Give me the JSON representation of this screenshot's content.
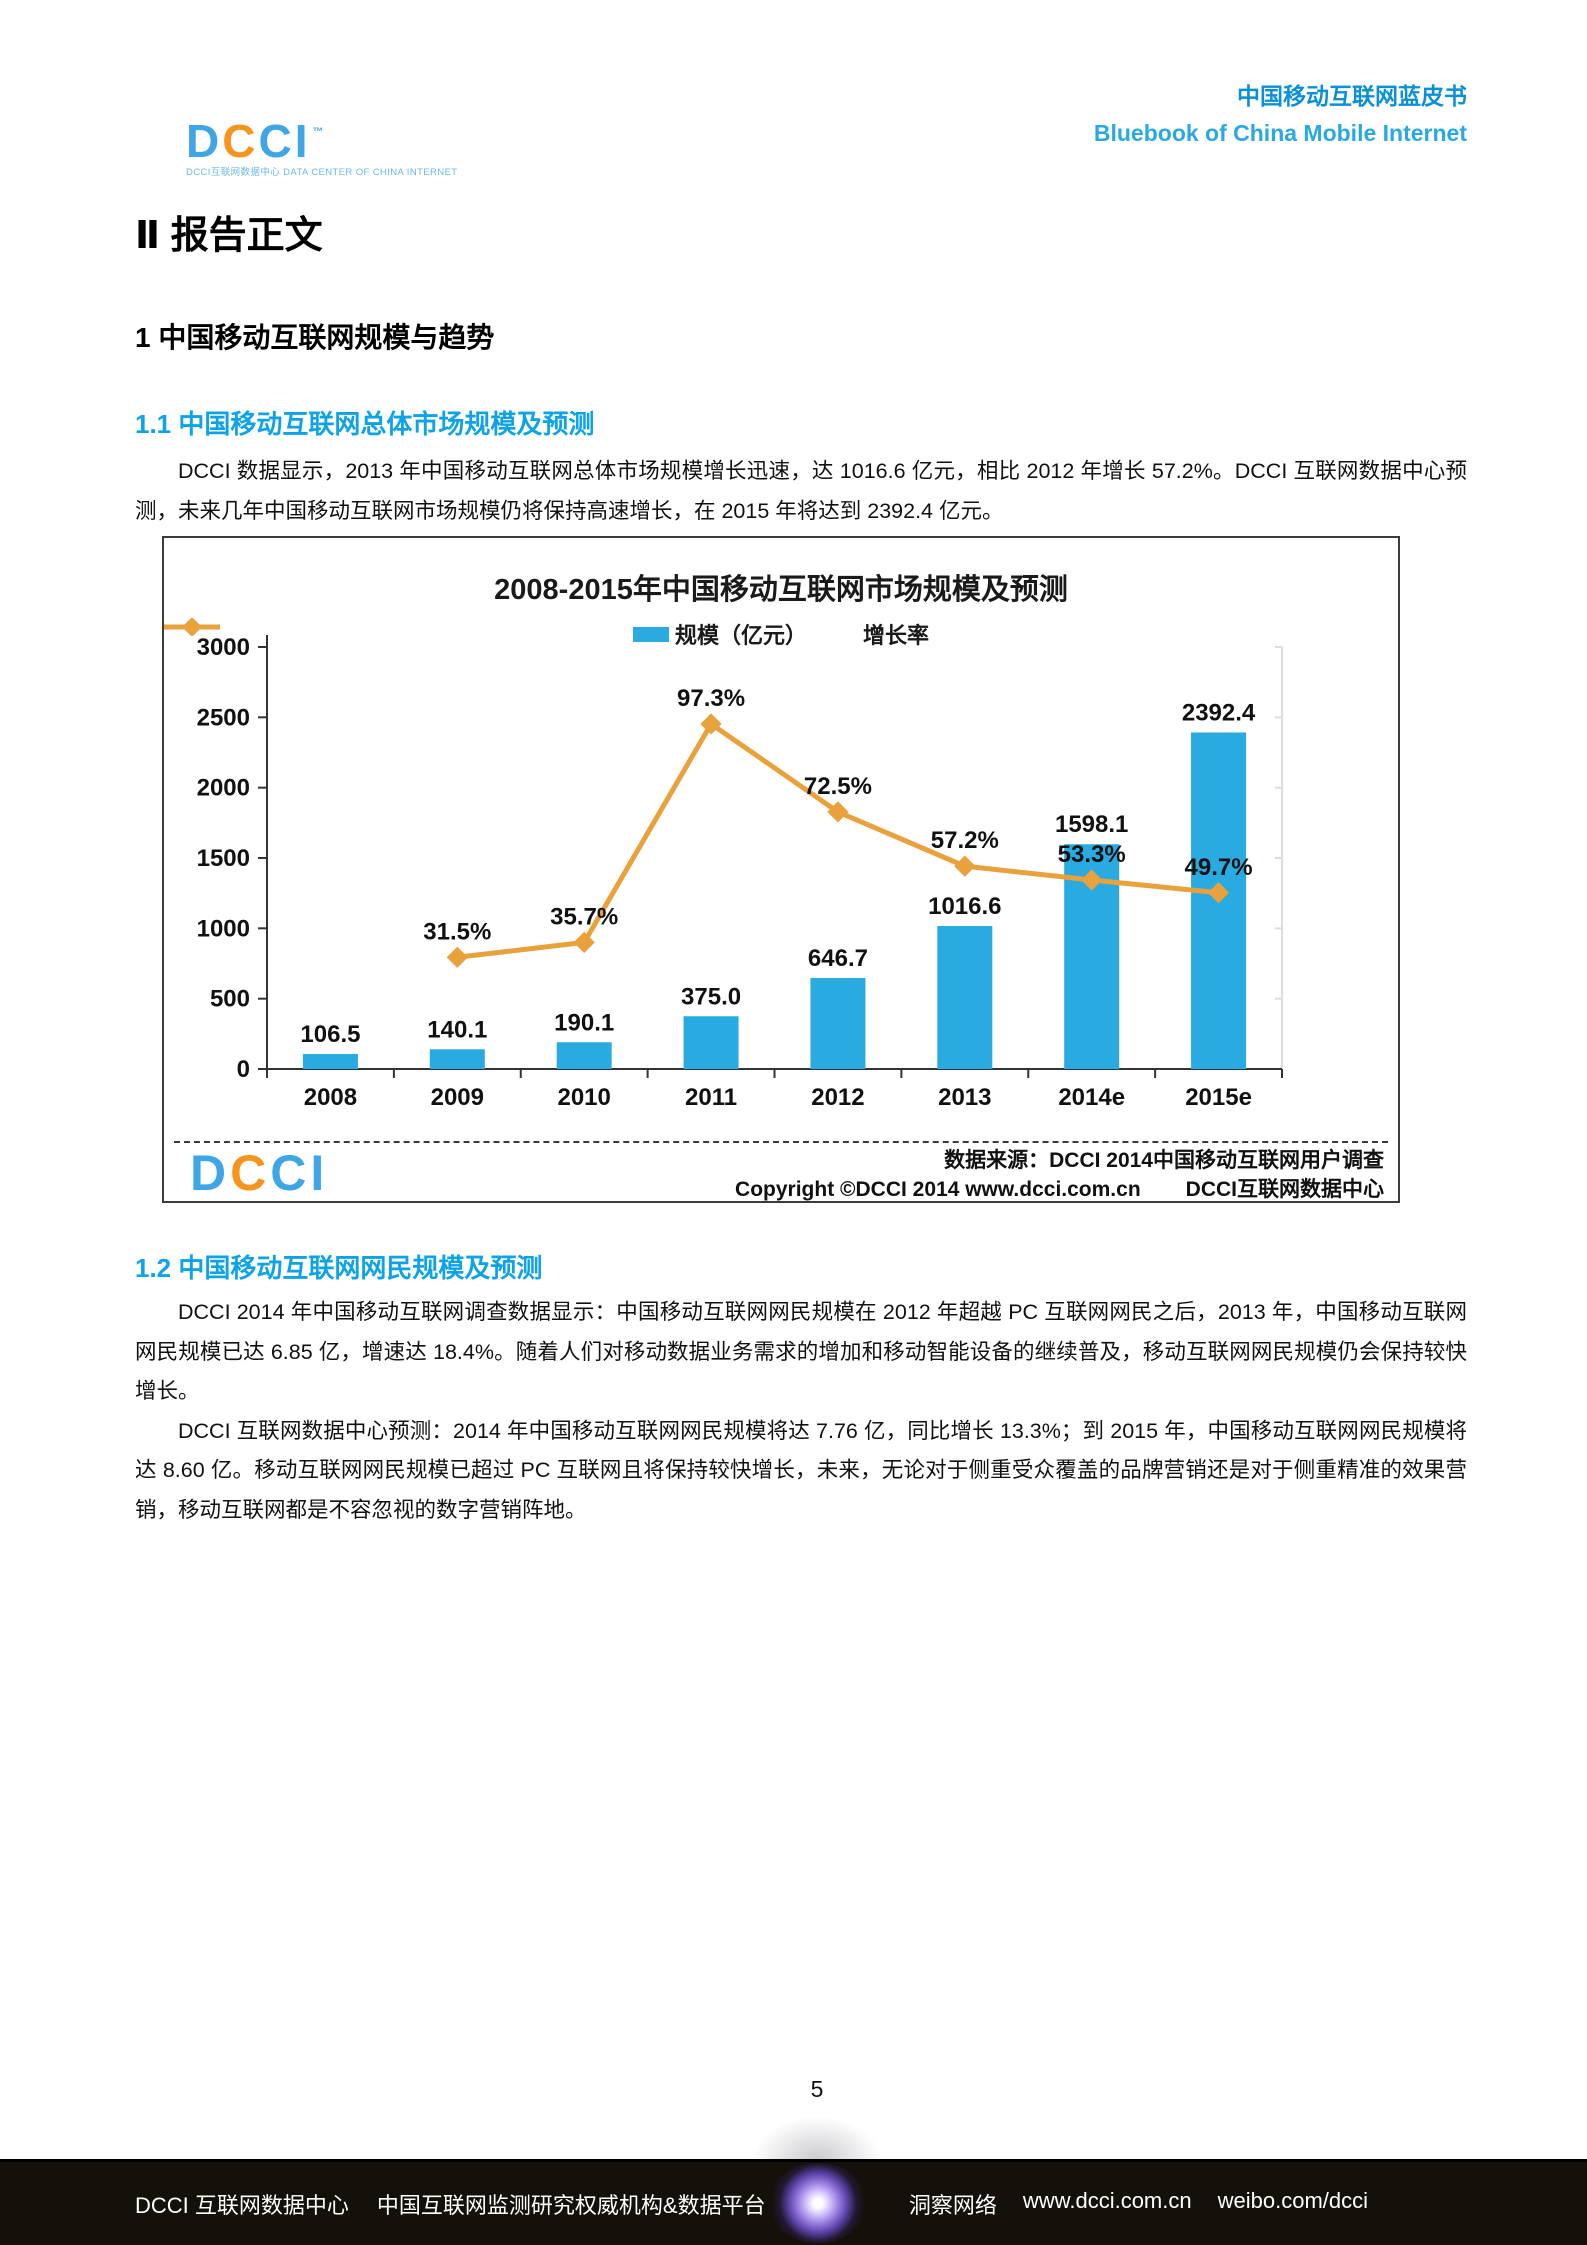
{
  "header": {
    "title_cn": "中国移动互联网蓝皮书",
    "title_en": "Bluebook of China Mobile Internet",
    "logo": {
      "letters": [
        {
          "ch": "D",
          "color": "#3ea6e6"
        },
        {
          "ch": "C",
          "color": "#f7941e"
        },
        {
          "ch": "C",
          "color": "#3ea6e6"
        },
        {
          "ch": "I",
          "color": "#3ea6e6"
        }
      ],
      "tm": "™",
      "tagline": "DCCI互联网数据中心 DATA CENTER OF CHINA INTERNET"
    }
  },
  "headings": {
    "part": "Ⅱ 报告正文",
    "chapter": "1 中国移动互联网规模与趋势",
    "section_1_1": "1.1 中国移动互联网总体市场规模及预测",
    "section_1_2": "1.2 中国移动互联网网民规模及预测"
  },
  "paragraphs": {
    "s1p1": "DCCI 数据显示，2013 年中国移动互联网总体市场规模增长迅速，达 1016.6 亿元，相比 2012 年增长 57.2%。DCCI 互联网数据中心预测，未来几年中国移动互联网市场规模仍将保持高速增长，在 2015 年将达到 2392.4 亿元。",
    "s2p1": "DCCI 2014 年中国移动互联网调查数据显示：中国移动互联网网民规模在 2012 年超越 PC 互联网网民之后，2013 年，中国移动互联网网民规模已达 6.85 亿，增速达 18.4%。随着人们对移动数据业务需求的增加和移动智能设备的继续普及，移动互联网网民规模仍会保持较快增长。",
    "s2p2": "DCCI 互联网数据中心预测：2014 年中国移动互联网网民规模将达 7.76 亿，同比增长 13.3%；到 2015 年，中国移动互联网网民规模将达 8.60 亿。移动互联网网民规模已超过 PC 互联网且将保持较快增长，未来，无论对于侧重受众覆盖的品牌营销还是对于侧重精准的效果营销，移动互联网都是不容忽视的数字营销阵地。"
  },
  "chart_data": {
    "type": "bar+line",
    "title": "2008-2015年中国移动互联网市场规模及预测",
    "categories": [
      "2008",
      "2009",
      "2010",
      "2011",
      "2012",
      "2013",
      "2014e",
      "2015e"
    ],
    "series": [
      {
        "name": "规模（亿元）",
        "type": "bar",
        "color": "#29abe2",
        "values": [
          106.5,
          140.1,
          190.1,
          375.0,
          646.7,
          1016.6,
          1598.1,
          2392.4
        ]
      },
      {
        "name": "增长率",
        "type": "line",
        "color": "#e9a13b",
        "unit": "%",
        "values": [
          null,
          31.5,
          35.7,
          97.3,
          72.5,
          57.2,
          53.3,
          49.7
        ]
      }
    ],
    "y_axis": {
      "min": 0,
      "max": 3000,
      "step": 500
    },
    "secondary_axis_max": 119,
    "grid": false,
    "legend_position": "top",
    "source_line1": "数据来源：DCCI 2014中国移动互联网用户调查",
    "copyright": "Copyright ©DCCI 2014 www.dcci.com.cn",
    "source_org": "DCCI互联网数据中心"
  },
  "page_number": "5",
  "footer": {
    "left_org": "DCCI 互联网数据中心",
    "left_desc": "中国互联网监测研究权威机构&数据平台",
    "right_brand": "洞察网络",
    "right_url": "www.dcci.com.cn",
    "right_weibo": "weibo.com/dcci"
  },
  "colors": {
    "brand_blue": "#29abe2",
    "brand_orange": "#f7941e",
    "heading_blue": "#0ea3e6",
    "line_orange": "#e9a13b",
    "footer_bg": "#14110b"
  }
}
